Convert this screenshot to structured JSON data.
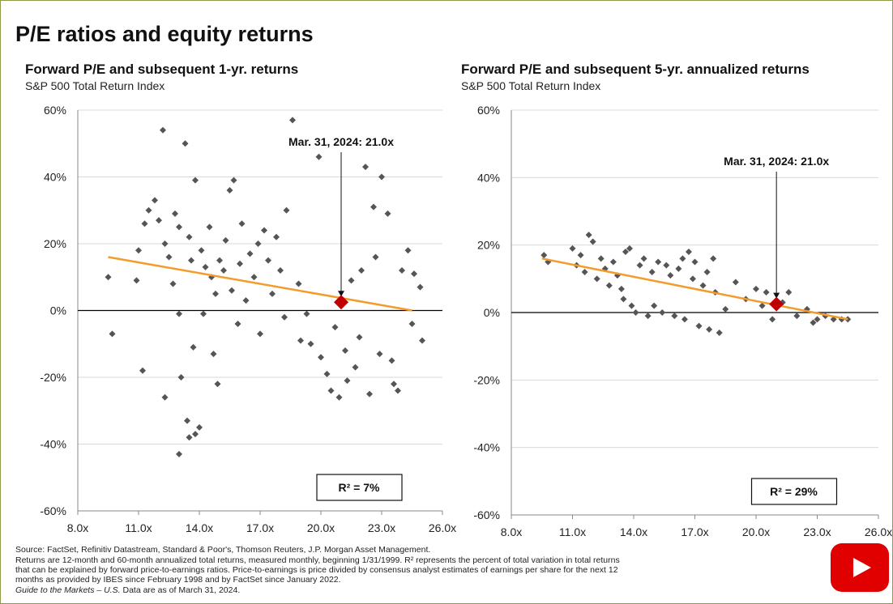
{
  "page_title": "P/E ratios and equity returns",
  "chart_data": [
    {
      "type": "scatter",
      "title": "Forward P/E and subsequent 1-yr. returns",
      "subtitle": "S&P 500 Total Return Index",
      "color": "#555555",
      "x": [
        9.5,
        9.7,
        10.9,
        11.0,
        11.3,
        11.2,
        11.5,
        11.8,
        12.0,
        12.2,
        12.3,
        12.5,
        12.7,
        12.8,
        13.0,
        13.1,
        13.0,
        12.3,
        13.3,
        13.5,
        13.6,
        13.8,
        13.4,
        13.5,
        13.8,
        14.0,
        13.0,
        14.1,
        14.3,
        14.5,
        14.6,
        14.8,
        15.0,
        14.2,
        13.7,
        14.7,
        14.9,
        15.3,
        15.5,
        15.7,
        15.2,
        15.6,
        15.9,
        16.0,
        16.1,
        16.3,
        16.5,
        16.7,
        16.9,
        17.0,
        17.2,
        17.4,
        17.6,
        17.8,
        18.0,
        18.2,
        18.3,
        18.6,
        18.9,
        19.0,
        19.3,
        19.5,
        19.9,
        20.0,
        20.3,
        20.5,
        20.7,
        20.9,
        21.2,
        21.5,
        21.7,
        21.9,
        22.2,
        22.4,
        22.6,
        22.7,
        22.9,
        23.0,
        23.3,
        23.5,
        23.6,
        23.8,
        24.0,
        24.3,
        24.5,
        24.6,
        24.9,
        25.0,
        21.3,
        22.0
      ],
      "values": [
        10,
        -7,
        9,
        18,
        26,
        -18,
        30,
        33,
        27,
        54,
        20,
        16,
        8,
        29,
        25,
        -20,
        -1,
        -26,
        50,
        22,
        15,
        39,
        -33,
        -38,
        -37,
        -35,
        -43,
        18,
        13,
        25,
        10,
        5,
        15,
        -1,
        -11,
        -13,
        -22,
        21,
        36,
        39,
        12,
        6,
        -4,
        14,
        26,
        3,
        17,
        10,
        20,
        -7,
        24,
        15,
        5,
        22,
        12,
        -2,
        30,
        57,
        8,
        -9,
        -1,
        -10,
        46,
        -14,
        -19,
        -24,
        -5,
        -26,
        -12,
        9,
        -17,
        -8,
        43,
        -25,
        31,
        16,
        -13,
        40,
        29,
        -15,
        -22,
        -24,
        12,
        18,
        -4,
        11,
        7,
        -9,
        -21,
        12
      ],
      "highlight": {
        "x": 21.0,
        "y": 2.5,
        "color": "#c00000"
      },
      "trendline": {
        "x": [
          9.5,
          24.5
        ],
        "y": [
          16,
          0
        ],
        "color": "#f39c2b"
      },
      "annotation": "Mar. 31, 2024: 21.0x",
      "r_squared_label": "R² = 7%",
      "xlim": [
        8,
        26
      ],
      "xticks": [
        {
          "value": 8,
          "label": "8.0x"
        },
        {
          "value": 11,
          "label": "11.0x"
        },
        {
          "value": 14,
          "label": "14.0x"
        },
        {
          "value": 17,
          "label": "17.0x"
        },
        {
          "value": 20,
          "label": "20.0x"
        },
        {
          "value": 23,
          "label": "23.0x"
        },
        {
          "value": 26,
          "label": "26.0x"
        }
      ],
      "ylim": [
        -60,
        60
      ],
      "yticks": [
        {
          "value": -60,
          "label": "-60%"
        },
        {
          "value": -40,
          "label": "-40%"
        },
        {
          "value": -20,
          "label": "-20%"
        },
        {
          "value": 0,
          "label": "0%"
        },
        {
          "value": 20,
          "label": "20%"
        },
        {
          "value": 40,
          "label": "40%"
        },
        {
          "value": 60,
          "label": "60%"
        }
      ],
      "grid": true
    },
    {
      "type": "scatter",
      "title": "Forward P/E and subsequent 5-yr. annualized returns",
      "subtitle": "S&P 500 Total Return Index",
      "color": "#555555",
      "x": [
        9.6,
        9.8,
        11.0,
        11.2,
        11.4,
        11.6,
        11.8,
        12.0,
        12.2,
        12.4,
        12.6,
        12.8,
        13.0,
        13.2,
        13.4,
        13.6,
        13.8,
        13.5,
        13.9,
        14.1,
        14.3,
        14.5,
        14.7,
        14.9,
        15.0,
        15.2,
        15.4,
        15.6,
        15.8,
        16.0,
        16.2,
        16.4,
        16.5,
        16.7,
        16.9,
        17.0,
        17.2,
        17.4,
        17.6,
        17.7,
        17.9,
        18.0,
        18.2,
        18.5,
        19.0,
        19.5,
        20.0,
        20.3,
        20.5,
        20.8,
        21.3,
        21.6,
        22.0,
        22.5,
        22.8,
        23.0,
        23.4,
        23.8,
        24.2,
        24.5
      ],
      "values": [
        17,
        15,
        19,
        14,
        17,
        12,
        23,
        21,
        10,
        16,
        13,
        8,
        15,
        11,
        7,
        18,
        19,
        4,
        2,
        0,
        14,
        16,
        -1,
        12,
        2,
        15,
        0,
        14,
        11,
        -1,
        13,
        16,
        -2,
        18,
        10,
        15,
        -4,
        8,
        12,
        -5,
        16,
        6,
        -6,
        1,
        9,
        4,
        7,
        2,
        6,
        -2,
        3,
        6,
        -1,
        1,
        -3,
        -2,
        -1,
        -2,
        -2,
        -2
      ],
      "highlight": {
        "x": 21.0,
        "y": 2.5,
        "color": "#c00000"
      },
      "trendline": {
        "x": [
          9.5,
          24.5
        ],
        "y": [
          16,
          -2
        ],
        "color": "#f39c2b"
      },
      "annotation": "Mar. 31, 2024: 21.0x",
      "r_squared_label": "R² = 29%",
      "xlim": [
        8,
        26
      ],
      "xticks": [
        {
          "value": 8,
          "label": "8.0x"
        },
        {
          "value": 11,
          "label": "11.0x"
        },
        {
          "value": 14,
          "label": "14.0x"
        },
        {
          "value": 17,
          "label": "17.0x"
        },
        {
          "value": 20,
          "label": "20.0x"
        },
        {
          "value": 23,
          "label": "23.0x"
        },
        {
          "value": 26,
          "label": "26.0x"
        }
      ],
      "ylim": [
        -60,
        60
      ],
      "yticks": [
        {
          "value": -60,
          "label": "-60%"
        },
        {
          "value": -40,
          "label": "-40%"
        },
        {
          "value": -20,
          "label": "-20%"
        },
        {
          "value": 0,
          "label": "0%"
        },
        {
          "value": 20,
          "label": "20%"
        },
        {
          "value": 40,
          "label": "40%"
        },
        {
          "value": 60,
          "label": "60%"
        }
      ],
      "grid": true
    }
  ],
  "footnotes": [
    "Source: FactSet, Refinitiv Datastream, Standard & Poor's, Thomson Reuters, J.P. Morgan Asset Management.",
    "Returns are 12-month and 60-month annualized total returns, measured monthly, beginning 1/31/1999. R² represents the percent of total variation in total returns",
    "that can be explained by forward price-to-earnings ratios. Price-to-earnings is price divided by consensus analyst estimates of earnings per share for the next 12",
    "months as provided by IBES since February 1998 and by FactSet since January 2022."
  ],
  "guide_name": "Guide to the Markets – U.S.",
  "as_of": "Data are as of March 31, 2024."
}
